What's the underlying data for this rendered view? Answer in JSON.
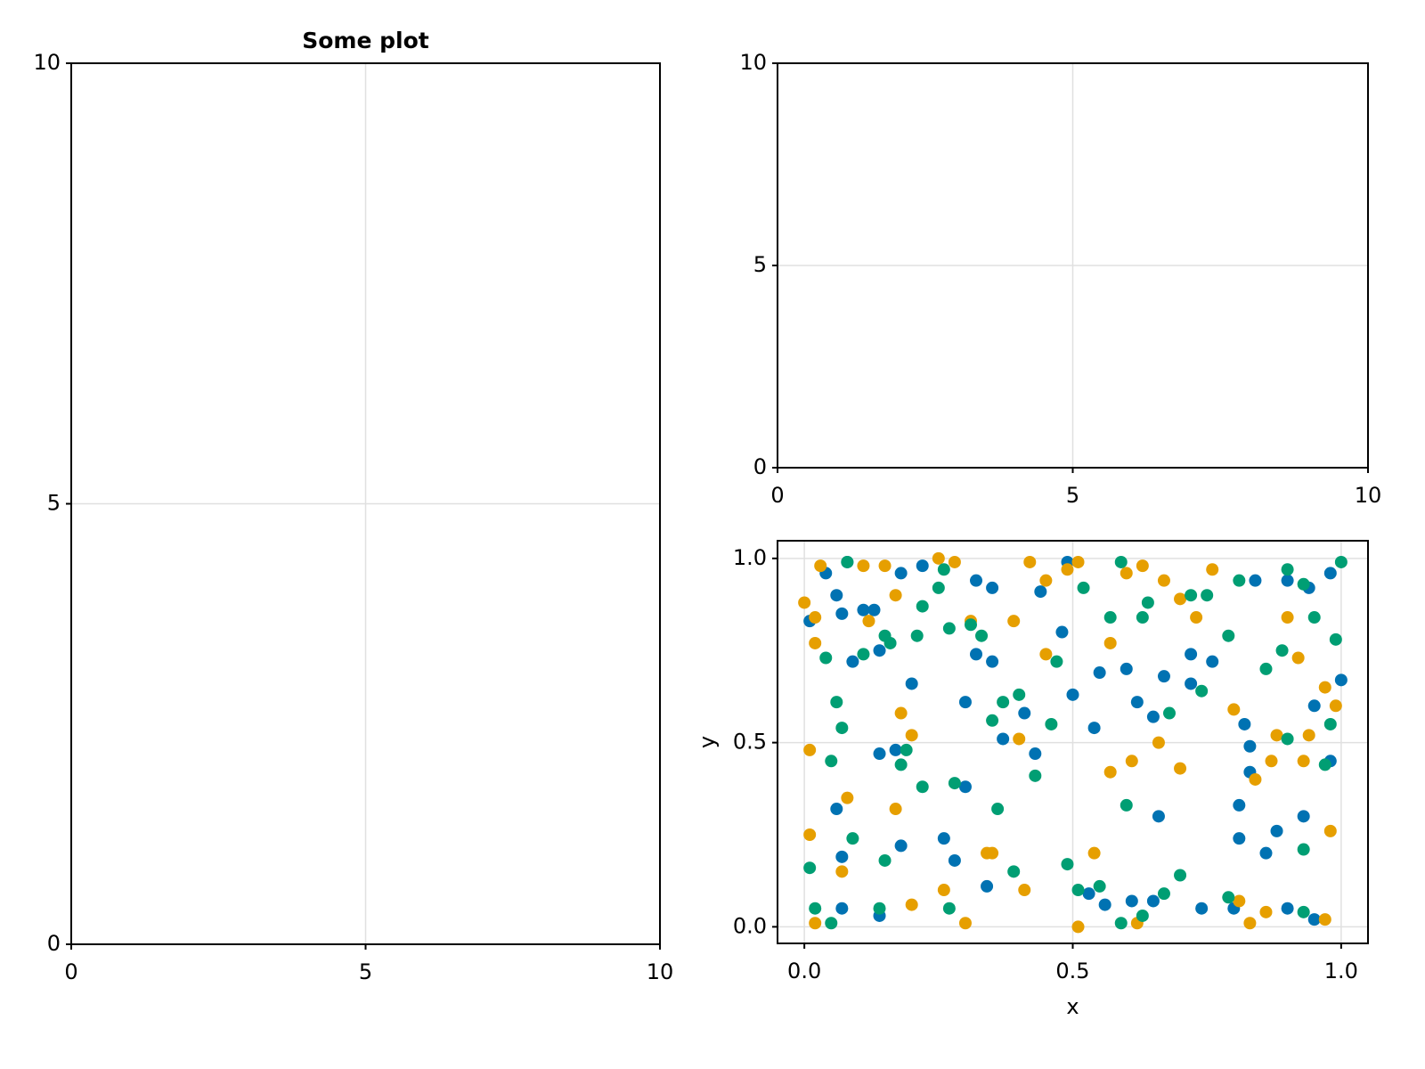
{
  "chart_data": [
    {
      "type": "scatter",
      "title": "Some plot",
      "xlim": [
        0,
        10
      ],
      "ylim": [
        0,
        10
      ],
      "xticks": [
        0,
        5,
        10
      ],
      "yticks": [
        0,
        5,
        10
      ],
      "grid": true
    },
    {
      "type": "scatter",
      "xlim": [
        0,
        10
      ],
      "ylim": [
        0,
        10
      ],
      "xticks": [
        0,
        5,
        10
      ],
      "yticks": [
        0,
        5,
        10
      ],
      "grid": true
    },
    {
      "type": "scatter",
      "xlabel": "x",
      "ylabel": "y",
      "xlim": [
        -0.05,
        1.05
      ],
      "ylim": [
        -0.045,
        1.048
      ],
      "xticks": [
        {
          "value": 0,
          "label": "0.0"
        },
        {
          "value": 0.5,
          "label": "0.5"
        },
        {
          "value": 1,
          "label": "1.0"
        }
      ],
      "yticks": [
        {
          "value": 0,
          "label": "0.0"
        },
        {
          "value": 0.5,
          "label": "0.5"
        },
        {
          "value": 1,
          "label": "1.0"
        }
      ],
      "grid": true,
      "series": [
        {
          "color": "#0072b2",
          "x": [
            0.01,
            0.06,
            0.07,
            0.08,
            0.04,
            0.09,
            0.14,
            0.11,
            0.13,
            0.18,
            0.22,
            0.32,
            0.35,
            0.44,
            0.49,
            0.48,
            0.32,
            0.35,
            0.3,
            0.37,
            0.41,
            0.43,
            0.54,
            0.55,
            0.6,
            0.62,
            0.65,
            0.67,
            0.72,
            0.72,
            0.76,
            0.82,
            0.83,
            0.83,
            0.81,
            0.81,
            0.86,
            0.88,
            0.93,
            0.95,
            0.98,
            1.0,
            0.98,
            0.94,
            0.9,
            0.84,
            0.95,
            0.9,
            0.8,
            0.74,
            0.65,
            0.61,
            0.53,
            0.34,
            0.28,
            0.26,
            0.18,
            0.14,
            0.07,
            0.07,
            0.06,
            0.14,
            0.17,
            0.2,
            0.3,
            0.5,
            0.56,
            0.66
          ],
          "values": [
            0.83,
            0.9,
            0.85,
            0.99,
            0.96,
            0.72,
            0.75,
            0.86,
            0.86,
            0.96,
            0.98,
            0.94,
            0.92,
            0.91,
            0.99,
            0.8,
            0.74,
            0.72,
            0.61,
            0.51,
            0.58,
            0.47,
            0.54,
            0.69,
            0.7,
            0.61,
            0.57,
            0.68,
            0.74,
            0.66,
            0.72,
            0.55,
            0.49,
            0.42,
            0.33,
            0.24,
            0.2,
            0.26,
            0.3,
            0.6,
            0.45,
            0.67,
            0.96,
            0.92,
            0.94,
            0.94,
            0.02,
            0.05,
            0.05,
            0.05,
            0.07,
            0.07,
            0.09,
            0.11,
            0.18,
            0.24,
            0.22,
            0.03,
            0.19,
            0.05,
            0.32,
            0.47,
            0.48,
            0.66,
            0.38,
            0.63,
            0.06,
            0.3
          ]
        },
        {
          "color": "#e69f00",
          "x": [
            0.0,
            0.01,
            0.01,
            0.02,
            0.02,
            0.02,
            0.03,
            0.08,
            0.07,
            0.11,
            0.12,
            0.15,
            0.17,
            0.18,
            0.17,
            0.2,
            0.2,
            0.25,
            0.28,
            0.31,
            0.34,
            0.3,
            0.39,
            0.4,
            0.41,
            0.42,
            0.45,
            0.45,
            0.49,
            0.51,
            0.51,
            0.54,
            0.57,
            0.57,
            0.6,
            0.61,
            0.62,
            0.63,
            0.66,
            0.67,
            0.7,
            0.7,
            0.73,
            0.76,
            0.8,
            0.81,
            0.83,
            0.84,
            0.87,
            0.88,
            0.9,
            0.92,
            0.93,
            0.94,
            0.97,
            0.97,
            0.98,
            0.99,
            0.86,
            0.26,
            0.35
          ],
          "values": [
            0.88,
            0.48,
            0.25,
            0.01,
            0.77,
            0.84,
            0.98,
            0.35,
            0.15,
            0.98,
            0.83,
            0.98,
            0.9,
            0.58,
            0.32,
            0.52,
            0.06,
            1.0,
            0.99,
            0.83,
            0.2,
            0.01,
            0.83,
            0.51,
            0.1,
            0.99,
            0.74,
            0.94,
            0.97,
            0.99,
            0.0,
            0.2,
            0.77,
            0.42,
            0.96,
            0.45,
            0.01,
            0.98,
            0.5,
            0.94,
            0.89,
            0.43,
            0.84,
            0.97,
            0.59,
            0.07,
            0.01,
            0.4,
            0.45,
            0.52,
            0.84,
            0.73,
            0.45,
            0.52,
            0.65,
            0.02,
            0.26,
            0.6,
            0.04,
            0.1,
            0.2
          ]
        },
        {
          "color": "#009e73",
          "x": [
            0.01,
            0.02,
            0.05,
            0.04,
            0.05,
            0.06,
            0.07,
            0.08,
            0.09,
            0.11,
            0.15,
            0.14,
            0.15,
            0.16,
            0.18,
            0.19,
            0.21,
            0.22,
            0.25,
            0.26,
            0.27,
            0.28,
            0.31,
            0.33,
            0.35,
            0.36,
            0.37,
            0.4,
            0.39,
            0.43,
            0.46,
            0.47,
            0.49,
            0.51,
            0.52,
            0.55,
            0.57,
            0.59,
            0.6,
            0.63,
            0.64,
            0.67,
            0.68,
            0.7,
            0.72,
            0.74,
            0.75,
            0.79,
            0.81,
            0.86,
            0.89,
            0.9,
            0.9,
            0.93,
            0.93,
            0.95,
            0.97,
            0.98,
            0.99,
            1.0,
            0.93,
            0.79,
            0.63,
            0.59,
            0.27,
            0.22
          ],
          "values": [
            0.16,
            0.05,
            0.01,
            0.73,
            0.45,
            0.61,
            0.54,
            0.99,
            0.24,
            0.74,
            0.79,
            0.05,
            0.18,
            0.77,
            0.44,
            0.48,
            0.79,
            0.87,
            0.92,
            0.97,
            0.81,
            0.39,
            0.82,
            0.79,
            0.56,
            0.32,
            0.61,
            0.63,
            0.15,
            0.41,
            0.55,
            0.72,
            0.17,
            0.1,
            0.92,
            0.11,
            0.84,
            0.99,
            0.33,
            0.84,
            0.88,
            0.09,
            0.58,
            0.14,
            0.9,
            0.64,
            0.9,
            0.79,
            0.94,
            0.7,
            0.75,
            0.97,
            0.51,
            0.93,
            0.21,
            0.84,
            0.44,
            0.55,
            0.78,
            0.99,
            0.04,
            0.08,
            0.03,
            0.01,
            0.05,
            0.38
          ]
        }
      ]
    }
  ]
}
